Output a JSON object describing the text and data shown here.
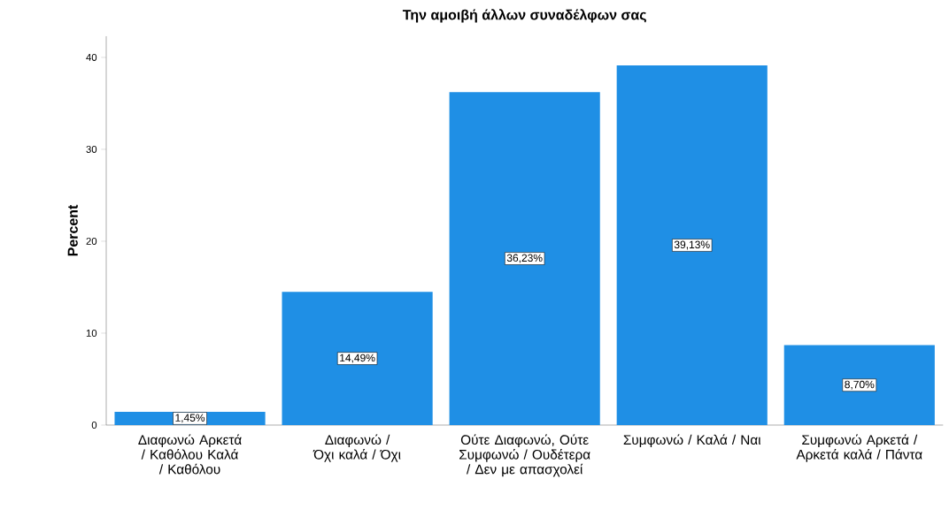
{
  "chart_data": {
    "type": "bar",
    "title": "Την αμοιβή άλλων συναδέλφων σας",
    "ylabel": "Percent",
    "categories": [
      "Διαφωνώ Αρκετά / Καθόλου Καλά / Καθόλου",
      "Διαφωνώ / Όχι καλά / Όχι",
      "Ούτε Διαφωνώ, Ούτε Συμφωνώ / Ουδέτερα / Δεν με απασχολεί",
      "Συμφωνώ / Καλά / Ναι",
      "Συμφωνώ Αρκετά / Αρκετά καλά / Πάντα"
    ],
    "values": [
      1.45,
      14.49,
      36.23,
      39.13,
      8.7
    ],
    "value_labels": [
      "1,45%",
      "14,49%",
      "36,23%",
      "39,13%",
      "8,70%"
    ],
    "color": "#1f8fe5",
    "ylim": [
      0,
      42.3
    ],
    "yticks": [
      0,
      10,
      20,
      30,
      40
    ]
  }
}
